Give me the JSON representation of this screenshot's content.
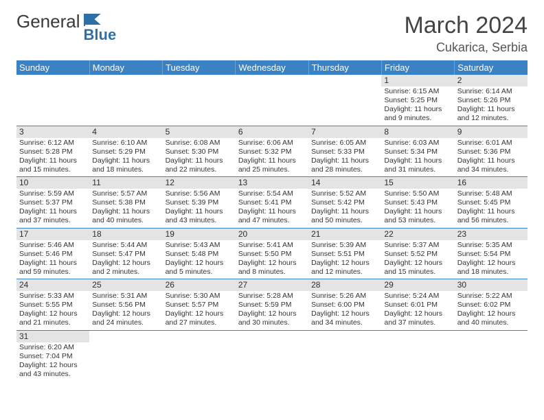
{
  "brand": {
    "name1": "General",
    "name2": "Blue"
  },
  "header": {
    "title": "March 2024",
    "location": "Cukarica, Serbia"
  },
  "colors": {
    "header_bg": "#3b82c4",
    "header_text": "#ffffff",
    "daynum_bar": "#e4e4e4",
    "row_border": "#3b82c4",
    "text": "#333333",
    "brand_gray": "#3a3a3a",
    "brand_blue": "#2f6fa8"
  },
  "columns": [
    "Sunday",
    "Monday",
    "Tuesday",
    "Wednesday",
    "Thursday",
    "Friday",
    "Saturday"
  ],
  "weeks": [
    [
      null,
      null,
      null,
      null,
      null,
      {
        "d": "1",
        "sunrise": "6:15 AM",
        "sunset": "5:25 PM",
        "daylight": "11 hours and 9 minutes."
      },
      {
        "d": "2",
        "sunrise": "6:14 AM",
        "sunset": "5:26 PM",
        "daylight": "11 hours and 12 minutes."
      }
    ],
    [
      {
        "d": "3",
        "sunrise": "6:12 AM",
        "sunset": "5:28 PM",
        "daylight": "11 hours and 15 minutes."
      },
      {
        "d": "4",
        "sunrise": "6:10 AM",
        "sunset": "5:29 PM",
        "daylight": "11 hours and 18 minutes."
      },
      {
        "d": "5",
        "sunrise": "6:08 AM",
        "sunset": "5:30 PM",
        "daylight": "11 hours and 22 minutes."
      },
      {
        "d": "6",
        "sunrise": "6:06 AM",
        "sunset": "5:32 PM",
        "daylight": "11 hours and 25 minutes."
      },
      {
        "d": "7",
        "sunrise": "6:05 AM",
        "sunset": "5:33 PM",
        "daylight": "11 hours and 28 minutes."
      },
      {
        "d": "8",
        "sunrise": "6:03 AM",
        "sunset": "5:34 PM",
        "daylight": "11 hours and 31 minutes."
      },
      {
        "d": "9",
        "sunrise": "6:01 AM",
        "sunset": "5:36 PM",
        "daylight": "11 hours and 34 minutes."
      }
    ],
    [
      {
        "d": "10",
        "sunrise": "5:59 AM",
        "sunset": "5:37 PM",
        "daylight": "11 hours and 37 minutes."
      },
      {
        "d": "11",
        "sunrise": "5:57 AM",
        "sunset": "5:38 PM",
        "daylight": "11 hours and 40 minutes."
      },
      {
        "d": "12",
        "sunrise": "5:56 AM",
        "sunset": "5:39 PM",
        "daylight": "11 hours and 43 minutes."
      },
      {
        "d": "13",
        "sunrise": "5:54 AM",
        "sunset": "5:41 PM",
        "daylight": "11 hours and 47 minutes."
      },
      {
        "d": "14",
        "sunrise": "5:52 AM",
        "sunset": "5:42 PM",
        "daylight": "11 hours and 50 minutes."
      },
      {
        "d": "15",
        "sunrise": "5:50 AM",
        "sunset": "5:43 PM",
        "daylight": "11 hours and 53 minutes."
      },
      {
        "d": "16",
        "sunrise": "5:48 AM",
        "sunset": "5:45 PM",
        "daylight": "11 hours and 56 minutes."
      }
    ],
    [
      {
        "d": "17",
        "sunrise": "5:46 AM",
        "sunset": "5:46 PM",
        "daylight": "11 hours and 59 minutes."
      },
      {
        "d": "18",
        "sunrise": "5:44 AM",
        "sunset": "5:47 PM",
        "daylight": "12 hours and 2 minutes."
      },
      {
        "d": "19",
        "sunrise": "5:43 AM",
        "sunset": "5:48 PM",
        "daylight": "12 hours and 5 minutes."
      },
      {
        "d": "20",
        "sunrise": "5:41 AM",
        "sunset": "5:50 PM",
        "daylight": "12 hours and 8 minutes."
      },
      {
        "d": "21",
        "sunrise": "5:39 AM",
        "sunset": "5:51 PM",
        "daylight": "12 hours and 12 minutes."
      },
      {
        "d": "22",
        "sunrise": "5:37 AM",
        "sunset": "5:52 PM",
        "daylight": "12 hours and 15 minutes."
      },
      {
        "d": "23",
        "sunrise": "5:35 AM",
        "sunset": "5:54 PM",
        "daylight": "12 hours and 18 minutes."
      }
    ],
    [
      {
        "d": "24",
        "sunrise": "5:33 AM",
        "sunset": "5:55 PM",
        "daylight": "12 hours and 21 minutes."
      },
      {
        "d": "25",
        "sunrise": "5:31 AM",
        "sunset": "5:56 PM",
        "daylight": "12 hours and 24 minutes."
      },
      {
        "d": "26",
        "sunrise": "5:30 AM",
        "sunset": "5:57 PM",
        "daylight": "12 hours and 27 minutes."
      },
      {
        "d": "27",
        "sunrise": "5:28 AM",
        "sunset": "5:59 PM",
        "daylight": "12 hours and 30 minutes."
      },
      {
        "d": "28",
        "sunrise": "5:26 AM",
        "sunset": "6:00 PM",
        "daylight": "12 hours and 34 minutes."
      },
      {
        "d": "29",
        "sunrise": "5:24 AM",
        "sunset": "6:01 PM",
        "daylight": "12 hours and 37 minutes."
      },
      {
        "d": "30",
        "sunrise": "5:22 AM",
        "sunset": "6:02 PM",
        "daylight": "12 hours and 40 minutes."
      }
    ],
    [
      {
        "d": "31",
        "sunrise": "6:20 AM",
        "sunset": "7:04 PM",
        "daylight": "12 hours and 43 minutes."
      },
      null,
      null,
      null,
      null,
      null,
      null
    ]
  ]
}
